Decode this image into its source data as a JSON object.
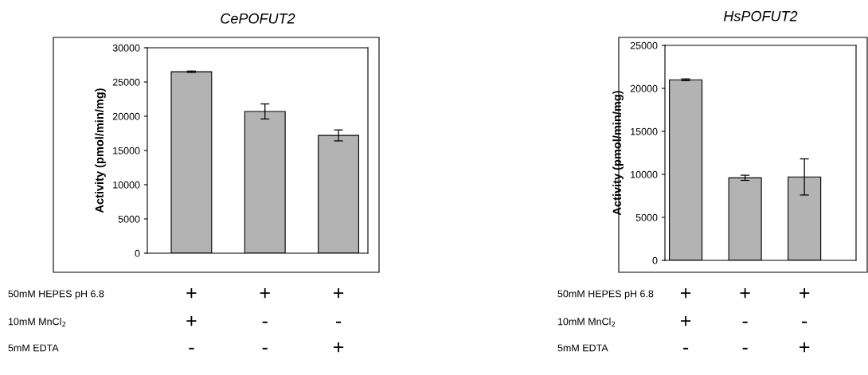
{
  "chart_data": [
    {
      "type": "bar",
      "title": "CePOFUT2",
      "ylabel": "Activity (pmol/min/mg)",
      "categories": [
        "+\n+\n-",
        "+\n-\n-",
        "+\n-\n+"
      ],
      "values": [
        26500,
        20700,
        17200
      ],
      "errors": [
        100,
        1100,
        800
      ],
      "color": "#b3b3b3",
      "ylim": [
        0,
        30000
      ],
      "yticks": [
        0,
        5000,
        10000,
        15000,
        20000,
        25000,
        30000
      ],
      "grid": false,
      "annotations": [
        "50mM HEPES pH 6.8",
        "10mM MnCl$_{2}$",
        "5mM EDTA"
      ]
    },
    {
      "type": "bar",
      "title": "HsPOFUT2",
      "ylabel": "Activity (pmol/min/mg)",
      "categories": [
        "+\n+\n-",
        "+\n-\n-",
        "+\n-\n+"
      ],
      "values": [
        21000,
        9600,
        9700
      ],
      "errors": [
        100,
        300,
        2100
      ],
      "color": "#b3b3b3",
      "ylim": [
        0,
        25000
      ],
      "yticks": [
        0,
        5000,
        10000,
        15000,
        20000,
        25000
      ],
      "grid": false,
      "annotations": [
        "50mM HEPES pH 6.8",
        "10mM MnCl$_{2}$",
        "5mM EDTA"
      ]
    }
  ]
}
